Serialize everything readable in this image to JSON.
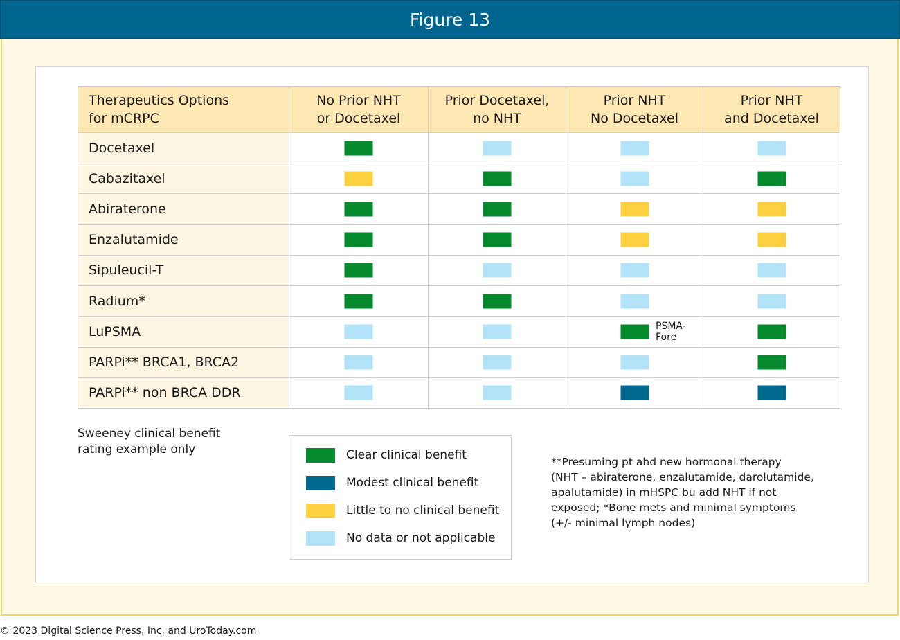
{
  "header": {
    "title": "Figure 13"
  },
  "colors": {
    "clear": "#058a2e",
    "modest": "#00678d",
    "little": "#fdd03f",
    "nodata": "#b3e3f9"
  },
  "table": {
    "headers": [
      [
        "Therapeutics Options",
        "for mCRPC"
      ],
      [
        "No Prior NHT",
        "or Docetaxel"
      ],
      [
        "Prior Docetaxel,",
        "no NHT"
      ],
      [
        "Prior NHT",
        "No Docetaxel"
      ],
      [
        "Prior NHT",
        "and Docetaxel"
      ]
    ],
    "rows": [
      {
        "label": "Docetaxel",
        "ratings": [
          "clear",
          "nodata",
          "nodata",
          "nodata"
        ]
      },
      {
        "label": "Cabazitaxel",
        "ratings": [
          "little",
          "clear",
          "nodata",
          "clear"
        ]
      },
      {
        "label": "Abiraterone",
        "ratings": [
          "clear",
          "clear",
          "little",
          "little"
        ]
      },
      {
        "label": "Enzalutamide",
        "ratings": [
          "clear",
          "clear",
          "little",
          "little"
        ]
      },
      {
        "label": "Sipuleucil-T",
        "ratings": [
          "clear",
          "nodata",
          "nodata",
          "nodata"
        ]
      },
      {
        "label": "Radium*",
        "ratings": [
          "clear",
          "clear",
          "nodata",
          "nodata"
        ]
      },
      {
        "label": "LuPSMA",
        "ratings": [
          "nodata",
          "nodata",
          "clear",
          "clear"
        ],
        "note": {
          "col": 2,
          "lines": [
            "PSMA-",
            "Fore"
          ]
        }
      },
      {
        "label": "PARPi** BRCA1, BRCA2",
        "ratings": [
          "nodata",
          "nodata",
          "nodata",
          "clear"
        ]
      },
      {
        "label": "PARPi** non BRCA DDR",
        "ratings": [
          "nodata",
          "nodata",
          "modest",
          "modest"
        ]
      }
    ]
  },
  "sweeney": {
    "line1": "Sweeney clinical benefit",
    "line2": "rating example only"
  },
  "legend": [
    {
      "key": "clear",
      "label": "Clear clinical benefit"
    },
    {
      "key": "modest",
      "label": "Modest clinical benefit"
    },
    {
      "key": "little",
      "label": "Little to no clinical benefit"
    },
    {
      "key": "nodata",
      "label": "No data or not applicable"
    }
  ],
  "footnote": [
    "**Presuming pt ahd new hormonal therapy",
    "(NHT – abiraterone, enzalutamide, darolutamide,",
    "apalutamide) in mHSPC bu add NHT if not",
    "exposed; *Bone mets and minimal symptoms",
    "(+/- minimal lymph nodes)"
  ],
  "copyright": "© 2023 Digital Science Press, Inc. and UroToday.com"
}
